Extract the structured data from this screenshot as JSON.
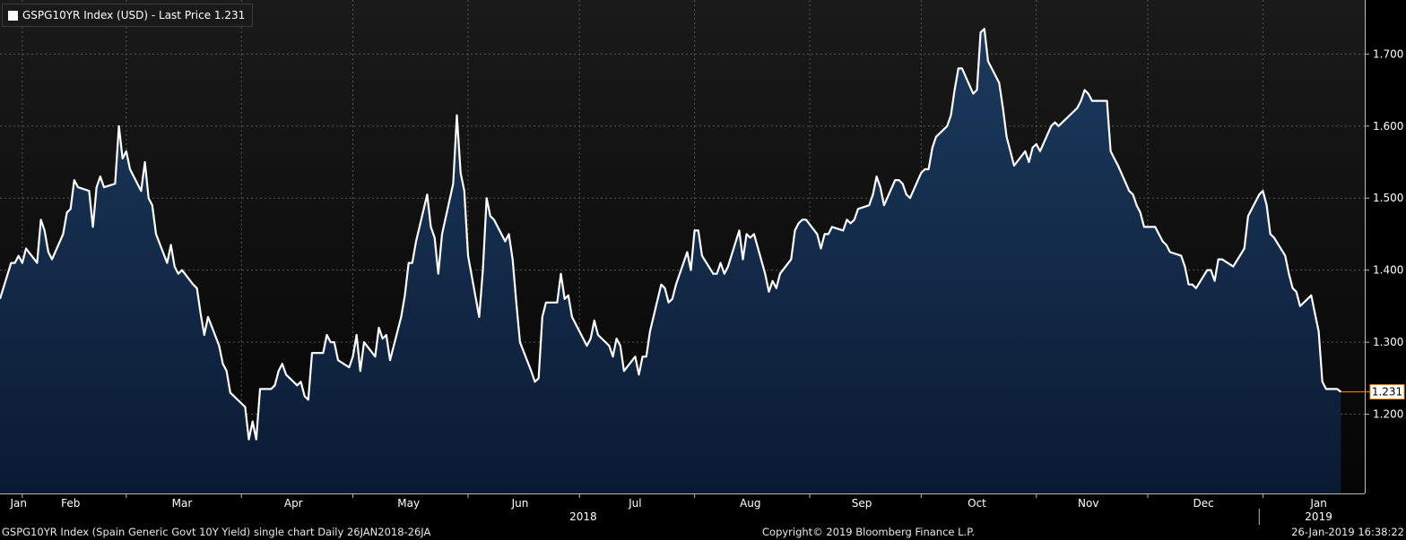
{
  "legend": {
    "text": "GSPG10YR Index (USD) - Last Price 1.231"
  },
  "footer": {
    "description": "GSPG10YR Index (Spain Generic Govt 10Y Yield) single chart  Daily 26JAN2018-26JA",
    "copyright": "Copyright© 2019 Bloomberg Finance L.P.",
    "timestamp": "26-Jan-2019 16:38:22"
  },
  "colors": {
    "background": "#000000",
    "plot_top": "#141414",
    "fill_top": "#1b3a5e",
    "fill_bottom": "#0b1a33",
    "line": "#ffffff",
    "grid": "#555555",
    "axis_text": "#ffffff",
    "last_price_marker": "#ff8c00"
  },
  "chart_data": {
    "type": "area",
    "series": [
      {
        "name": "GSPG10YR Index (USD)",
        "points": [
          [
            "2018-01-26",
            1.36
          ],
          [
            "2018-01-29",
            1.41
          ],
          [
            "2018-01-30",
            1.41
          ],
          [
            "2018-01-31",
            1.42
          ],
          [
            "2018-02-01",
            1.41
          ],
          [
            "2018-02-02",
            1.43
          ],
          [
            "2018-02-05",
            1.41
          ],
          [
            "2018-02-06",
            1.47
          ],
          [
            "2018-02-07",
            1.455
          ],
          [
            "2018-02-08",
            1.425
          ],
          [
            "2018-02-09",
            1.415
          ],
          [
            "2018-02-12",
            1.45
          ],
          [
            "2018-02-13",
            1.48
          ],
          [
            "2018-02-14",
            1.485
          ],
          [
            "2018-02-15",
            1.525
          ],
          [
            "2018-02-16",
            1.515
          ],
          [
            "2018-02-19",
            1.51
          ],
          [
            "2018-02-20",
            1.46
          ],
          [
            "2018-02-21",
            1.515
          ],
          [
            "2018-02-22",
            1.53
          ],
          [
            "2018-02-23",
            1.515
          ],
          [
            "2018-02-26",
            1.52
          ],
          [
            "2018-02-27",
            1.6
          ],
          [
            "2018-02-28",
            1.555
          ],
          [
            "2018-03-01",
            1.565
          ],
          [
            "2018-03-02",
            1.54
          ],
          [
            "2018-03-05",
            1.51
          ],
          [
            "2018-03-06",
            1.55
          ],
          [
            "2018-03-07",
            1.5
          ],
          [
            "2018-03-08",
            1.49
          ],
          [
            "2018-03-09",
            1.45
          ],
          [
            "2018-03-12",
            1.41
          ],
          [
            "2018-03-13",
            1.435
          ],
          [
            "2018-03-14",
            1.405
          ],
          [
            "2018-03-15",
            1.395
          ],
          [
            "2018-03-16",
            1.4
          ],
          [
            "2018-03-19",
            1.38
          ],
          [
            "2018-03-20",
            1.375
          ],
          [
            "2018-03-21",
            1.34
          ],
          [
            "2018-03-22",
            1.31
          ],
          [
            "2018-03-23",
            1.335
          ],
          [
            "2018-03-26",
            1.295
          ],
          [
            "2018-03-27",
            1.27
          ],
          [
            "2018-03-28",
            1.26
          ],
          [
            "2018-03-29",
            1.23
          ],
          [
            "2018-04-02",
            1.21
          ],
          [
            "2018-04-03",
            1.165
          ],
          [
            "2018-04-04",
            1.19
          ],
          [
            "2018-04-05",
            1.165
          ],
          [
            "2018-04-06",
            1.235
          ],
          [
            "2018-04-09",
            1.235
          ],
          [
            "2018-04-10",
            1.24
          ],
          [
            "2018-04-11",
            1.26
          ],
          [
            "2018-04-12",
            1.27
          ],
          [
            "2018-04-13",
            1.255
          ],
          [
            "2018-04-16",
            1.24
          ],
          [
            "2018-04-17",
            1.245
          ],
          [
            "2018-04-18",
            1.225
          ],
          [
            "2018-04-19",
            1.22
          ],
          [
            "2018-04-20",
            1.285
          ],
          [
            "2018-04-23",
            1.285
          ],
          [
            "2018-04-24",
            1.31
          ],
          [
            "2018-04-25",
            1.3
          ],
          [
            "2018-04-26",
            1.3
          ],
          [
            "2018-04-27",
            1.275
          ],
          [
            "2018-04-30",
            1.265
          ],
          [
            "2018-05-01",
            1.28
          ],
          [
            "2018-05-02",
            1.31
          ],
          [
            "2018-05-03",
            1.26
          ],
          [
            "2018-05-04",
            1.3
          ],
          [
            "2018-05-07",
            1.28
          ],
          [
            "2018-05-08",
            1.32
          ],
          [
            "2018-05-09",
            1.305
          ],
          [
            "2018-05-10",
            1.31
          ],
          [
            "2018-05-11",
            1.275
          ],
          [
            "2018-05-14",
            1.335
          ],
          [
            "2018-05-15",
            1.365
          ],
          [
            "2018-05-16",
            1.41
          ],
          [
            "2018-05-17",
            1.41
          ],
          [
            "2018-05-18",
            1.44
          ],
          [
            "2018-05-21",
            1.505
          ],
          [
            "2018-05-22",
            1.46
          ],
          [
            "2018-05-23",
            1.445
          ],
          [
            "2018-05-24",
            1.395
          ],
          [
            "2018-05-25",
            1.45
          ],
          [
            "2018-05-28",
            1.52
          ],
          [
            "2018-05-29",
            1.615
          ],
          [
            "2018-05-30",
            1.535
          ],
          [
            "2018-05-31",
            1.51
          ],
          [
            "2018-06-01",
            1.42
          ],
          [
            "2018-06-04",
            1.335
          ],
          [
            "2018-06-05",
            1.4
          ],
          [
            "2018-06-06",
            1.5
          ],
          [
            "2018-06-07",
            1.475
          ],
          [
            "2018-06-08",
            1.47
          ],
          [
            "2018-06-11",
            1.44
          ],
          [
            "2018-06-12",
            1.45
          ],
          [
            "2018-06-13",
            1.415
          ],
          [
            "2018-06-14",
            1.355
          ],
          [
            "2018-06-15",
            1.3
          ],
          [
            "2018-06-18",
            1.26
          ],
          [
            "2018-06-19",
            1.245
          ],
          [
            "2018-06-20",
            1.25
          ],
          [
            "2018-06-21",
            1.335
          ],
          [
            "2018-06-22",
            1.355
          ],
          [
            "2018-06-25",
            1.355
          ],
          [
            "2018-06-26",
            1.395
          ],
          [
            "2018-06-27",
            1.36
          ],
          [
            "2018-06-28",
            1.365
          ],
          [
            "2018-06-29",
            1.335
          ],
          [
            "2018-07-02",
            1.305
          ],
          [
            "2018-07-03",
            1.295
          ],
          [
            "2018-07-04",
            1.305
          ],
          [
            "2018-07-05",
            1.33
          ],
          [
            "2018-07-06",
            1.31
          ],
          [
            "2018-07-09",
            1.295
          ],
          [
            "2018-07-10",
            1.28
          ],
          [
            "2018-07-11",
            1.305
          ],
          [
            "2018-07-12",
            1.295
          ],
          [
            "2018-07-13",
            1.26
          ],
          [
            "2018-07-16",
            1.28
          ],
          [
            "2018-07-17",
            1.255
          ],
          [
            "2018-07-18",
            1.28
          ],
          [
            "2018-07-19",
            1.28
          ],
          [
            "2018-07-20",
            1.315
          ],
          [
            "2018-07-23",
            1.38
          ],
          [
            "2018-07-24",
            1.375
          ],
          [
            "2018-07-25",
            1.355
          ],
          [
            "2018-07-26",
            1.36
          ],
          [
            "2018-07-27",
            1.38
          ],
          [
            "2018-07-30",
            1.425
          ],
          [
            "2018-07-31",
            1.4
          ],
          [
            "2018-08-01",
            1.455
          ],
          [
            "2018-08-02",
            1.455
          ],
          [
            "2018-08-03",
            1.42
          ],
          [
            "2018-08-06",
            1.395
          ],
          [
            "2018-08-07",
            1.395
          ],
          [
            "2018-08-08",
            1.41
          ],
          [
            "2018-08-09",
            1.395
          ],
          [
            "2018-08-10",
            1.405
          ],
          [
            "2018-08-13",
            1.455
          ],
          [
            "2018-08-14",
            1.415
          ],
          [
            "2018-08-15",
            1.45
          ],
          [
            "2018-08-16",
            1.445
          ],
          [
            "2018-08-17",
            1.45
          ],
          [
            "2018-08-20",
            1.395
          ],
          [
            "2018-08-21",
            1.37
          ],
          [
            "2018-08-22",
            1.385
          ],
          [
            "2018-08-23",
            1.375
          ],
          [
            "2018-08-24",
            1.395
          ],
          [
            "2018-08-27",
            1.415
          ],
          [
            "2018-08-28",
            1.455
          ],
          [
            "2018-08-29",
            1.465
          ],
          [
            "2018-08-30",
            1.47
          ],
          [
            "2018-08-31",
            1.47
          ],
          [
            "2018-09-03",
            1.45
          ],
          [
            "2018-09-04",
            1.43
          ],
          [
            "2018-09-05",
            1.45
          ],
          [
            "2018-09-06",
            1.45
          ],
          [
            "2018-09-07",
            1.46
          ],
          [
            "2018-09-10",
            1.455
          ],
          [
            "2018-09-11",
            1.47
          ],
          [
            "2018-09-12",
            1.465
          ],
          [
            "2018-09-13",
            1.47
          ],
          [
            "2018-09-14",
            1.485
          ],
          [
            "2018-09-17",
            1.49
          ],
          [
            "2018-09-18",
            1.505
          ],
          [
            "2018-09-19",
            1.53
          ],
          [
            "2018-09-20",
            1.515
          ],
          [
            "2018-09-21",
            1.49
          ],
          [
            "2018-09-24",
            1.525
          ],
          [
            "2018-09-25",
            1.525
          ],
          [
            "2018-09-26",
            1.52
          ],
          [
            "2018-09-27",
            1.505
          ],
          [
            "2018-09-28",
            1.5
          ],
          [
            "2018-10-01",
            1.535
          ],
          [
            "2018-10-02",
            1.54
          ],
          [
            "2018-10-03",
            1.54
          ],
          [
            "2018-10-04",
            1.57
          ],
          [
            "2018-10-05",
            1.585
          ],
          [
            "2018-10-08",
            1.6
          ],
          [
            "2018-10-09",
            1.615
          ],
          [
            "2018-10-10",
            1.65
          ],
          [
            "2018-10-11",
            1.68
          ],
          [
            "2018-10-12",
            1.68
          ],
          [
            "2018-10-15",
            1.645
          ],
          [
            "2018-10-16",
            1.65
          ],
          [
            "2018-10-17",
            1.73
          ],
          [
            "2018-10-18",
            1.735
          ],
          [
            "2018-10-19",
            1.69
          ],
          [
            "2018-10-22",
            1.66
          ],
          [
            "2018-10-23",
            1.625
          ],
          [
            "2018-10-24",
            1.585
          ],
          [
            "2018-10-25",
            1.565
          ],
          [
            "2018-10-26",
            1.545
          ],
          [
            "2018-10-29",
            1.565
          ],
          [
            "2018-10-30",
            1.55
          ],
          [
            "2018-10-31",
            1.57
          ],
          [
            "2018-11-01",
            1.575
          ],
          [
            "2018-11-02",
            1.565
          ],
          [
            "2018-11-05",
            1.6
          ],
          [
            "2018-11-06",
            1.605
          ],
          [
            "2018-11-07",
            1.6
          ],
          [
            "2018-11-08",
            1.605
          ],
          [
            "2018-11-09",
            1.61
          ],
          [
            "2018-11-12",
            1.625
          ],
          [
            "2018-11-13",
            1.635
          ],
          [
            "2018-11-14",
            1.65
          ],
          [
            "2018-11-15",
            1.645
          ],
          [
            "2018-11-16",
            1.635
          ],
          [
            "2018-11-19",
            1.635
          ],
          [
            "2018-11-20",
            1.635
          ],
          [
            "2018-11-21",
            1.565
          ],
          [
            "2018-11-22",
            1.555
          ],
          [
            "2018-11-23",
            1.545
          ],
          [
            "2018-11-26",
            1.51
          ],
          [
            "2018-11-27",
            1.505
          ],
          [
            "2018-11-28",
            1.49
          ],
          [
            "2018-11-29",
            1.48
          ],
          [
            "2018-11-30",
            1.46
          ],
          [
            "2018-12-03",
            1.46
          ],
          [
            "2018-12-04",
            1.45
          ],
          [
            "2018-12-05",
            1.44
          ],
          [
            "2018-12-06",
            1.435
          ],
          [
            "2018-12-07",
            1.425
          ],
          [
            "2018-12-10",
            1.42
          ],
          [
            "2018-12-11",
            1.405
          ],
          [
            "2018-12-12",
            1.38
          ],
          [
            "2018-12-13",
            1.38
          ],
          [
            "2018-12-14",
            1.375
          ],
          [
            "2018-12-17",
            1.4
          ],
          [
            "2018-12-18",
            1.4
          ],
          [
            "2018-12-19",
            1.385
          ],
          [
            "2018-12-20",
            1.415
          ],
          [
            "2018-12-21",
            1.415
          ],
          [
            "2018-12-24",
            1.405
          ],
          [
            "2018-12-27",
            1.43
          ],
          [
            "2018-12-28",
            1.475
          ],
          [
            "2018-12-31",
            1.505
          ],
          [
            "2019-01-01",
            1.51
          ],
          [
            "2019-01-02",
            1.49
          ],
          [
            "2019-01-03",
            1.45
          ],
          [
            "2019-01-04",
            1.445
          ],
          [
            "2019-01-07",
            1.42
          ],
          [
            "2019-01-08",
            1.395
          ],
          [
            "2019-01-09",
            1.375
          ],
          [
            "2019-01-10",
            1.37
          ],
          [
            "2019-01-11",
            1.35
          ],
          [
            "2019-01-14",
            1.365
          ],
          [
            "2019-01-15",
            1.34
          ],
          [
            "2019-01-16",
            1.315
          ],
          [
            "2019-01-17",
            1.245
          ],
          [
            "2019-01-18",
            1.235
          ],
          [
            "2019-01-21",
            1.235
          ],
          [
            "2019-01-22",
            1.231
          ]
        ]
      }
    ],
    "last_value_label": "1.231",
    "y_axis": {
      "min": 1.09,
      "max": 1.775,
      "ticks": [
        "1.200",
        "1.300",
        "1.400",
        "1.500",
        "1.600",
        "1.700"
      ],
      "position": "right"
    },
    "x_axis": {
      "labels": [
        {
          "text": "Jan",
          "date": "2018-01-31"
        },
        {
          "text": "Feb",
          "date": "2018-02-14"
        },
        {
          "text": "Mar",
          "date": "2018-03-16"
        },
        {
          "text": "Apr",
          "date": "2018-04-15"
        },
        {
          "text": "May",
          "date": "2018-05-16"
        },
        {
          "text": "Jun",
          "date": "2018-06-15"
        },
        {
          "text": "Jul",
          "date": "2018-07-16"
        },
        {
          "text": "Aug",
          "date": "2018-08-16"
        },
        {
          "text": "Sep",
          "date": "2018-09-15"
        },
        {
          "text": "Oct",
          "date": "2018-10-16"
        },
        {
          "text": "Nov",
          "date": "2018-11-15"
        },
        {
          "text": "Dec",
          "date": "2018-12-16"
        },
        {
          "text": "Jan",
          "date": "2019-01-16"
        }
      ],
      "years": [
        {
          "text": "2018",
          "date": "2018-07-02"
        },
        {
          "text": "2019",
          "date": "2019-01-16"
        }
      ],
      "year_divider_date": "2018-12-31",
      "grid_dates": [
        "2018-02-01",
        "2018-03-01",
        "2018-04-01",
        "2018-05-01",
        "2018-06-01",
        "2018-07-01",
        "2018-08-01",
        "2018-09-01",
        "2018-10-01",
        "2018-11-01",
        "2018-12-01",
        "2019-01-01"
      ]
    },
    "grid": true
  }
}
